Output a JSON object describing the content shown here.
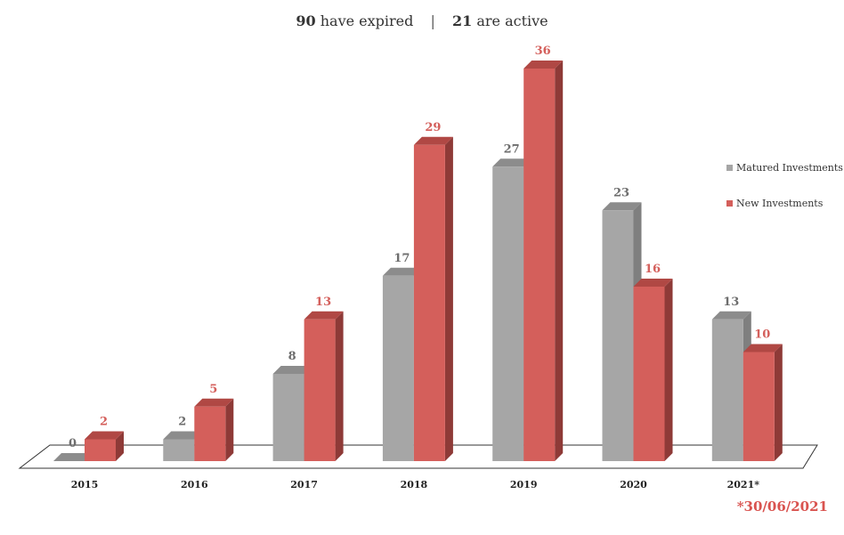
{
  "header": {
    "expired_count": "90",
    "expired_text": "have expired",
    "separator": "|",
    "active_count": "21",
    "active_text": "are active"
  },
  "legend": [
    {
      "label": "Matured Investments",
      "color": "#a6a6a6"
    },
    {
      "label": "New Investments",
      "color": "#d45f5b"
    }
  ],
  "footnote": "*30/06/2021",
  "colors": {
    "matured_front": "#a6a6a6",
    "matured_side": "#7f7f7f",
    "matured_top": "#8c8c8c",
    "new_front": "#d45f5b",
    "new_side": "#8e3a37",
    "new_top": "#b04844",
    "matured_label": "#6d6d6d",
    "new_label": "#d45f5b",
    "floor_stroke": "#333333"
  },
  "chart_data": {
    "type": "bar",
    "categories": [
      "2015",
      "2016",
      "2017",
      "2018",
      "2019",
      "2020",
      "2021*"
    ],
    "series": [
      {
        "name": "Matured Investments",
        "values": [
          0,
          2,
          8,
          17,
          27,
          23,
          13
        ]
      },
      {
        "name": "New Investments",
        "values": [
          2,
          5,
          13,
          29,
          36,
          16,
          10
        ]
      }
    ],
    "ylim": [
      0,
      36
    ],
    "grid": false,
    "legend_position": "right",
    "style": "3d-clustered-column"
  }
}
